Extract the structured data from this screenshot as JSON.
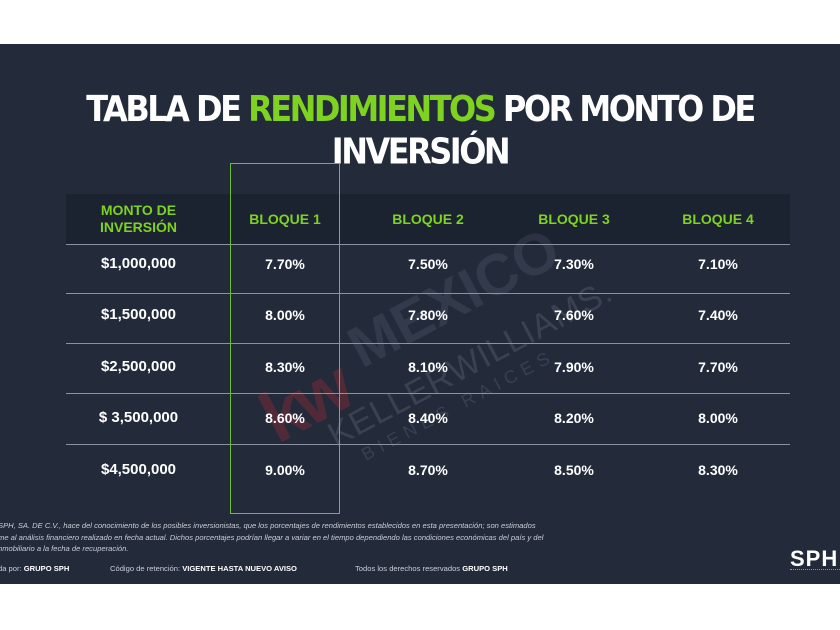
{
  "title": {
    "part1": "TABLA DE ",
    "accent": "RENDIMIENTOS",
    "part2": " POR MONTO DE INVERSIÓN"
  },
  "table": {
    "headers": [
      "MONTO DE\nINVERSIÓN",
      "BLOQUE 1",
      "BLOQUE 2",
      "BLOQUE 3",
      "BLOQUE 4"
    ],
    "rows": [
      {
        "amount": "$1,000,000",
        "values": [
          "7.70%",
          "7.50%",
          "7.30%",
          "7.10%"
        ]
      },
      {
        "amount": "$1,500,000",
        "values": [
          "8.00%",
          "7.80%",
          "7.60%",
          "7.40%"
        ]
      },
      {
        "amount": "$2,500,000",
        "values": [
          "8.30%",
          "8.10%",
          "7.90%",
          "7.70%"
        ]
      },
      {
        "amount": "$ 3,500,000",
        "values": [
          "8.60%",
          "8.40%",
          "8.20%",
          "8.00%"
        ]
      },
      {
        "amount": "$4,500,000",
        "values": [
          "9.00%",
          "8.70%",
          "8.50%",
          "8.30%"
        ]
      }
    ],
    "highlight_column": "BLOQUE 1"
  },
  "watermark": {
    "logo": "kw",
    "mexico": "MEXICO",
    "name": "KELLERWILLIAMS.",
    "sub": "BIENES RAICES"
  },
  "disclaimer": {
    "line1": "SPH, SA. DE C.V., hace del conocimiento de los posibles inversionistas, que los porcentajes de rendimientos establecidos en esta presentación; son estimados",
    "line2": "me al análisis financiero realizado en fecha actual. Dichos porcentajes podrían llegar a variar en el tiempo dependiendo las condiciones económicas del país y del",
    "line3": "nmobiliario a la fecha de recuperación."
  },
  "footer": {
    "made_by_label": "da por: ",
    "made_by_value": "GRUPO SPH",
    "retention_label": "Código de retención: ",
    "retention_value": "VIGENTE  HASTA NUEVO AVISO",
    "rights_label": "Todos los derechos reservados ",
    "rights_value": "GRUPO SPH"
  },
  "logo": "SPH",
  "colors": {
    "background": "#232b3b",
    "accent_green": "#7ed321",
    "text": "#ffffff"
  }
}
